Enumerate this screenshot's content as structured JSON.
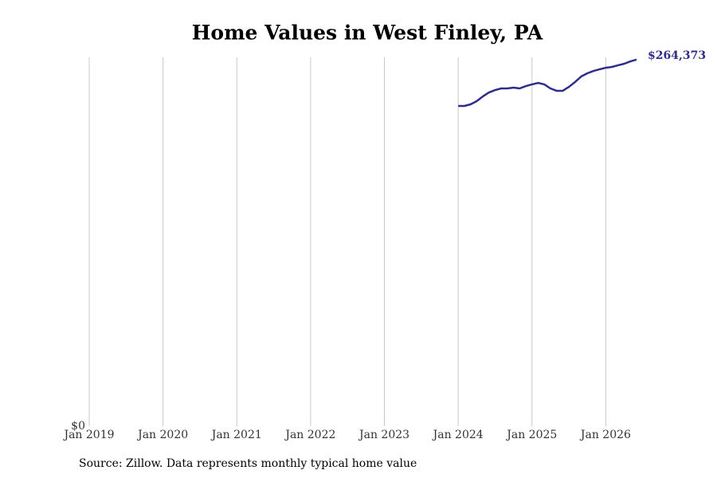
{
  "chart_data": {
    "type": "line",
    "title": "Home Values in West Finley, PA",
    "source": "Source: Zillow. Data represents monthly typical home value",
    "x": [
      "Jan 2024",
      "Feb 2024",
      "Mar 2024",
      "Apr 2024",
      "May 2024",
      "Jun 2024",
      "Jul 2024",
      "Aug 2024",
      "Sep 2024",
      "Oct 2024",
      "Nov 2024",
      "Dec 2024",
      "Jan 2025",
      "Feb 2025",
      "Mar 2025",
      "Apr 2025",
      "May 2025",
      "Jun 2025",
      "Jul 2025",
      "Aug 2025",
      "Sep 2025",
      "Oct 2025",
      "Nov 2025",
      "Dec 2025",
      "Jan 2026",
      "Feb 2026",
      "Mar 2026",
      "Apr 2026",
      "May 2026",
      "Jun 2026"
    ],
    "series": [
      {
        "name": "West Finley, PA",
        "color": "#2f2d8a",
        "values": [
          230950,
          230950,
          232100,
          234400,
          237800,
          240700,
          242400,
          243600,
          243600,
          244200,
          243600,
          245300,
          246500,
          247600,
          246500,
          243600,
          241900,
          241900,
          244700,
          248200,
          252200,
          254500,
          256200,
          257400,
          258500,
          259100,
          260300,
          261400,
          263100,
          264373
        ],
        "value_labels": [
          null,
          null,
          null,
          null,
          null,
          null,
          null,
          null,
          null,
          null,
          null,
          null,
          null,
          null,
          null,
          null,
          null,
          null,
          null,
          null,
          null,
          null,
          null,
          null,
          null,
          null,
          null,
          null,
          null,
          "$264,373"
        ]
      }
    ],
    "xlim": [
      "Jan 2019",
      "Jun 2026"
    ],
    "xticks": [
      "Jan 2019",
      "Jan 2020",
      "Jan 2021",
      "Jan 2022",
      "Jan 2023",
      "Jan 2024",
      "Jan 2025",
      "Jan 2026"
    ],
    "ylim": [
      0,
      266000
    ],
    "yticks": [
      {
        "value": 0,
        "label": "$0"
      }
    ],
    "grid": true
  }
}
